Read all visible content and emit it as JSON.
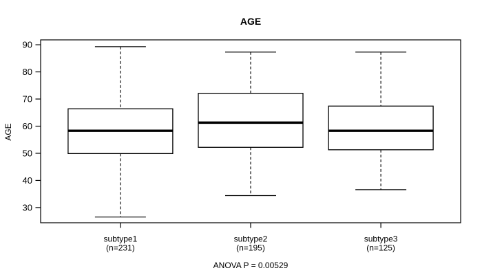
{
  "chart_data": {
    "type": "boxplot",
    "title": "AGE",
    "xlabel": "",
    "ylabel": "AGE",
    "annotation": "ANOVA P = 0.00529",
    "ylim": [
      24.4,
      91.8
    ],
    "yticks": [
      30,
      40,
      50,
      60,
      70,
      80,
      90
    ],
    "grid": false,
    "legend": "none",
    "categories": [
      "subtype1",
      "subtype2",
      "subtype3"
    ],
    "groups": [
      {
        "label": "subtype1",
        "sublabel": "(n=231)",
        "n": 231,
        "whisker_low": 26.5,
        "q1": 49.9,
        "median": 58.3,
        "q3": 66.4,
        "whisker_high": 89.3
      },
      {
        "label": "subtype2",
        "sublabel": "(n=195)",
        "n": 195,
        "whisker_low": 34.4,
        "q1": 52.2,
        "median": 61.3,
        "q3": 72.1,
        "whisker_high": 87.3
      },
      {
        "label": "subtype3",
        "sublabel": "(n=125)",
        "n": 125,
        "whisker_low": 36.6,
        "q1": 51.3,
        "median": 58.3,
        "q3": 67.4,
        "whisker_high": 87.3
      }
    ]
  },
  "colors": {
    "line": "#000000",
    "box_fill": "#ffffff",
    "background": "#ffffff",
    "text": "#000000"
  }
}
